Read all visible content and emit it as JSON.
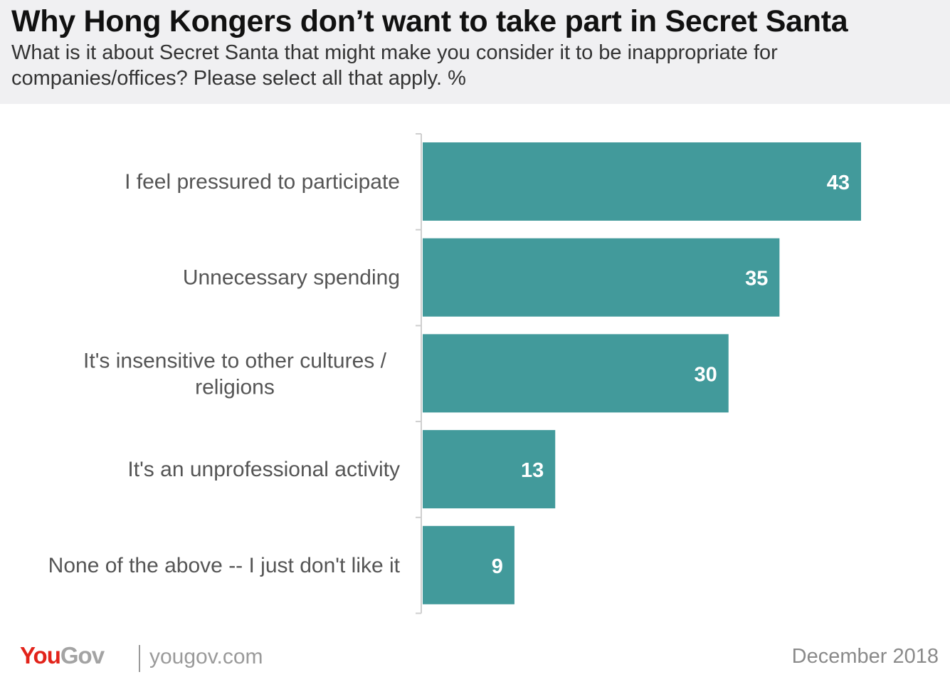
{
  "header": {
    "title": "Why Hong Kongers don’t want to take part in Secret Santa",
    "subtitle": "What is it about Secret Santa that might make you consider it to be inappropriate for companies/offices? Please select all that apply. %"
  },
  "chart_data": {
    "type": "bar",
    "orientation": "horizontal",
    "categories": [
      "I feel pressured to participate",
      "Unnecessary spending",
      "It's insensitive to other cultures / religions",
      "It's an unprofessional activity",
      "None of the above -- I just don't like it"
    ],
    "values": [
      43,
      35,
      30,
      13,
      9
    ],
    "data_labels": [
      "43",
      "35",
      "30",
      "13",
      "9"
    ],
    "xlim": [
      0,
      45
    ],
    "unit": "%",
    "grid": false,
    "legend": "none",
    "bar_color": "#429a9b",
    "label_color": "#ffffff"
  },
  "footer": {
    "logo_you": "You",
    "logo_gov": "Gov",
    "url": "yougov.com",
    "date": "December 2018"
  }
}
